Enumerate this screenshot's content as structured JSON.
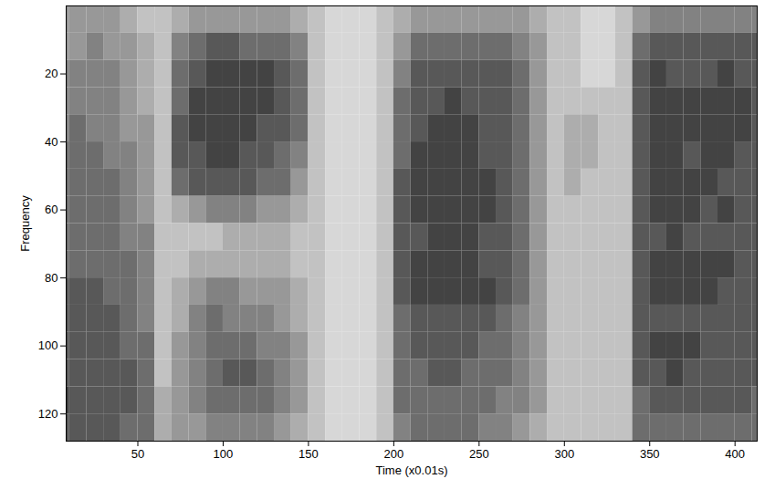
{
  "chart_data": {
    "type": "heatmap",
    "xlabel": "Time (x0.01s)",
    "ylabel": "Frequency",
    "xlim": [
      8,
      413
    ],
    "ylim": [
      0,
      128
    ],
    "xticks": [
      50,
      100,
      150,
      200,
      250,
      300,
      350,
      400
    ],
    "yticks": [
      20,
      40,
      60,
      80,
      100,
      120
    ],
    "time_bins": [
      0,
      10,
      20,
      30,
      40,
      50,
      60,
      70,
      80,
      90,
      100,
      110,
      120,
      130,
      140,
      150,
      160,
      170,
      180,
      190,
      200,
      210,
      220,
      230,
      240,
      250,
      260,
      270,
      280,
      290,
      300,
      310,
      320,
      330,
      340,
      350,
      360,
      370,
      380,
      390,
      400,
      410,
      420
    ],
    "frequency_bins": [
      0,
      8,
      16,
      24,
      32,
      40,
      48,
      56,
      64,
      72,
      80,
      88,
      96,
      104,
      112,
      120,
      128
    ],
    "cell_range": [
      0,
      9
    ],
    "cells": [
      [
        4,
        4,
        4,
        4,
        3,
        2,
        2,
        3,
        4,
        4,
        4,
        4,
        4,
        4,
        3,
        2,
        1,
        1,
        1,
        2,
        3,
        4,
        4,
        4,
        4,
        4,
        4,
        4,
        3,
        2,
        2,
        1,
        1,
        2,
        4,
        5,
        5,
        5,
        5,
        5,
        5,
        5
      ],
      [
        4,
        4,
        5,
        4,
        4,
        3,
        2,
        5,
        6,
        7,
        7,
        6,
        6,
        6,
        5,
        2,
        1,
        1,
        1,
        2,
        4,
        6,
        6,
        6,
        6,
        6,
        6,
        5,
        4,
        2,
        2,
        1,
        1,
        2,
        6,
        7,
        7,
        7,
        7,
        7,
        7,
        7
      ],
      [
        5,
        5,
        5,
        5,
        4,
        3,
        2,
        6,
        7,
        8,
        8,
        8,
        8,
        7,
        6,
        2,
        1,
        1,
        1,
        2,
        5,
        7,
        7,
        7,
        7,
        7,
        7,
        6,
        4,
        2,
        2,
        1,
        1,
        2,
        7,
        8,
        7,
        7,
        7,
        8,
        7,
        7
      ],
      [
        5,
        5,
        5,
        5,
        4,
        3,
        2,
        6,
        8,
        8,
        8,
        8,
        8,
        7,
        6,
        2,
        1,
        1,
        1,
        2,
        6,
        7,
        7,
        8,
        7,
        7,
        7,
        6,
        4,
        2,
        2,
        2,
        2,
        2,
        7,
        8,
        8,
        8,
        8,
        8,
        8,
        7
      ],
      [
        5,
        6,
        5,
        5,
        4,
        4,
        2,
        7,
        8,
        8,
        8,
        8,
        7,
        7,
        6,
        2,
        1,
        1,
        1,
        2,
        6,
        7,
        8,
        8,
        8,
        7,
        7,
        6,
        4,
        2,
        3,
        3,
        2,
        2,
        7,
        8,
        8,
        8,
        8,
        8,
        8,
        7
      ],
      [
        6,
        6,
        6,
        5,
        5,
        4,
        2,
        7,
        7,
        8,
        8,
        7,
        7,
        6,
        5,
        2,
        1,
        1,
        1,
        2,
        6,
        8,
        8,
        8,
        8,
        7,
        7,
        6,
        4,
        2,
        3,
        3,
        2,
        2,
        7,
        8,
        8,
        7,
        8,
        8,
        7,
        7
      ],
      [
        6,
        6,
        6,
        6,
        5,
        4,
        2,
        6,
        7,
        7,
        7,
        7,
        6,
        6,
        4,
        2,
        1,
        1,
        1,
        2,
        7,
        8,
        8,
        8,
        8,
        8,
        7,
        6,
        4,
        2,
        3,
        2,
        2,
        2,
        7,
        8,
        8,
        8,
        8,
        7,
        7,
        7
      ],
      [
        6,
        6,
        6,
        6,
        5,
        4,
        2,
        3,
        4,
        5,
        5,
        5,
        4,
        4,
        3,
        2,
        1,
        1,
        1,
        2,
        7,
        8,
        8,
        8,
        8,
        8,
        7,
        6,
        4,
        2,
        2,
        2,
        2,
        2,
        7,
        8,
        8,
        8,
        7,
        8,
        7,
        7
      ],
      [
        6,
        6,
        6,
        6,
        5,
        5,
        2,
        2,
        2,
        2,
        3,
        3,
        3,
        3,
        2,
        2,
        1,
        1,
        1,
        2,
        7,
        7,
        8,
        8,
        8,
        7,
        7,
        6,
        4,
        2,
        2,
        2,
        2,
        2,
        7,
        7,
        8,
        7,
        7,
        7,
        7,
        7
      ],
      [
        6,
        6,
        6,
        6,
        6,
        5,
        2,
        2,
        3,
        3,
        3,
        3,
        3,
        3,
        2,
        2,
        1,
        1,
        1,
        2,
        7,
        8,
        8,
        8,
        8,
        7,
        7,
        6,
        4,
        2,
        2,
        2,
        2,
        2,
        7,
        8,
        8,
        8,
        8,
        8,
        7,
        7
      ],
      [
        7,
        7,
        7,
        6,
        6,
        5,
        2,
        3,
        4,
        5,
        5,
        4,
        4,
        4,
        3,
        2,
        1,
        1,
        1,
        2,
        7,
        8,
        8,
        8,
        8,
        8,
        7,
        6,
        4,
        2,
        2,
        2,
        2,
        2,
        7,
        8,
        8,
        8,
        8,
        7,
        7,
        7
      ],
      [
        7,
        7,
        7,
        7,
        6,
        5,
        2,
        3,
        5,
        6,
        5,
        5,
        5,
        4,
        3,
        2,
        1,
        1,
        1,
        2,
        6,
        7,
        7,
        7,
        7,
        7,
        6,
        5,
        4,
        2,
        2,
        2,
        2,
        2,
        7,
        7,
        7,
        7,
        7,
        7,
        7,
        7
      ],
      [
        7,
        7,
        7,
        7,
        6,
        6,
        2,
        4,
        5,
        6,
        6,
        6,
        5,
        5,
        4,
        2,
        1,
        1,
        1,
        2,
        6,
        7,
        7,
        7,
        7,
        6,
        6,
        5,
        4,
        2,
        2,
        2,
        2,
        2,
        7,
        8,
        8,
        8,
        7,
        7,
        7,
        7
      ],
      [
        7,
        7,
        7,
        7,
        7,
        6,
        2,
        4,
        5,
        6,
        7,
        7,
        6,
        5,
        4,
        2,
        1,
        1,
        1,
        2,
        6,
        6,
        7,
        7,
        6,
        6,
        6,
        5,
        4,
        2,
        2,
        2,
        2,
        2,
        7,
        7,
        8,
        7,
        7,
        7,
        7,
        7
      ],
      [
        8,
        7,
        7,
        7,
        7,
        6,
        3,
        4,
        5,
        6,
        6,
        6,
        6,
        5,
        4,
        2,
        1,
        1,
        1,
        2,
        6,
        6,
        6,
        6,
        6,
        6,
        5,
        5,
        4,
        2,
        2,
        2,
        2,
        2,
        6,
        7,
        7,
        7,
        7,
        7,
        7,
        6
      ],
      [
        7,
        7,
        7,
        7,
        6,
        6,
        3,
        4,
        4,
        5,
        5,
        5,
        5,
        4,
        3,
        2,
        1,
        1,
        1,
        2,
        5,
        6,
        6,
        6,
        6,
        5,
        5,
        4,
        3,
        2,
        2,
        2,
        2,
        2,
        6,
        6,
        6,
        6,
        6,
        6,
        6,
        6
      ]
    ]
  }
}
